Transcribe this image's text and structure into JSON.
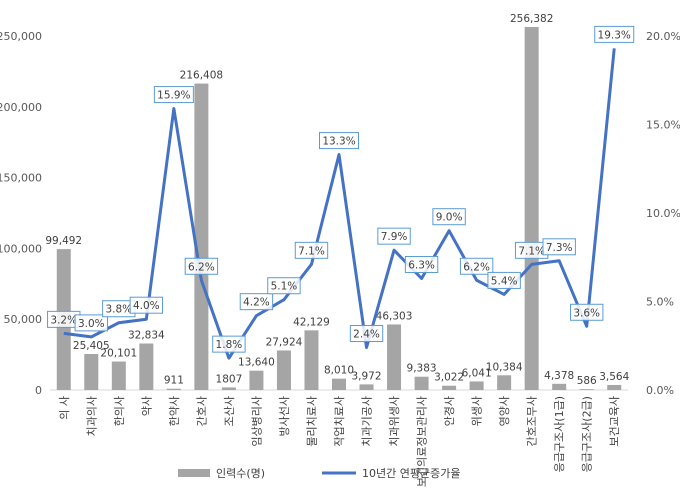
{
  "chart_data": {
    "type": "bar+line",
    "categories": [
      "의 사",
      "치과의사",
      "한의사",
      "약사",
      "한약사",
      "간호사",
      "조산사",
      "임상병리사",
      "방사선사",
      "물리치료사",
      "작업치료사",
      "치과기공사",
      "치과위생사",
      "보건의료정보관리사",
      "안경사",
      "위생사",
      "영양사",
      "간호조무사",
      "응급구조사(1급)",
      "응급구조사(2급)",
      "보건교육사"
    ],
    "series": [
      {
        "name": "인력수(명)",
        "type": "bar",
        "axis": "left",
        "color": "#a5a5a5",
        "values": [
          99492,
          25405,
          20101,
          32834,
          911,
          216408,
          1807,
          13640,
          27924,
          42129,
          8010,
          3972,
          46303,
          9383,
          3022,
          6041,
          10384,
          256382,
          4378,
          586,
          3564
        ],
        "labels": [
          "99,492",
          "25,405",
          "20,101",
          "32,834",
          "911",
          "216,408",
          "1807",
          "13,640",
          "27,924",
          "42,129",
          "8,010",
          "3,972",
          "46,303",
          "9,383",
          "3,022",
          "6,041",
          "10,384",
          "256,382",
          "4,378",
          "586",
          "3,564"
        ]
      },
      {
        "name": "10년간 연평균증가율",
        "type": "line",
        "axis": "right",
        "color": "#4472c4",
        "values": [
          3.2,
          3.0,
          3.8,
          4.0,
          15.9,
          6.2,
          1.8,
          4.2,
          5.1,
          7.1,
          13.3,
          2.4,
          7.9,
          6.3,
          9.0,
          6.2,
          5.4,
          7.1,
          7.3,
          3.6,
          19.3
        ],
        "labels": [
          "3.2%",
          "3.0%",
          "3.8%",
          "4.0%",
          "15.9%",
          "6.2%",
          "1.8%",
          "4.2%",
          "5.1%",
          "7.1%",
          "13.3%",
          "2.4%",
          "7.9%",
          "6.3%",
          "9.0%",
          "6.2%",
          "5.4%",
          "7.1%",
          "7.3%",
          "3.6%",
          "19.3%"
        ]
      }
    ],
    "left_axis": {
      "min": 0,
      "max": 250000,
      "ticks": [
        "0",
        "50,000",
        "100,000",
        "150,000",
        "200,000",
        "250,000"
      ],
      "tick_values": [
        0,
        50000,
        100000,
        150000,
        200000,
        250000
      ]
    },
    "right_axis": {
      "min": 0,
      "max": 20,
      "ticks": [
        "0.0%",
        "5.0%",
        "10.0%",
        "15.0%",
        "20.0%"
      ],
      "tick_values": [
        0,
        5,
        10,
        15,
        20
      ]
    },
    "grid": false,
    "legend_position": "bottom"
  }
}
